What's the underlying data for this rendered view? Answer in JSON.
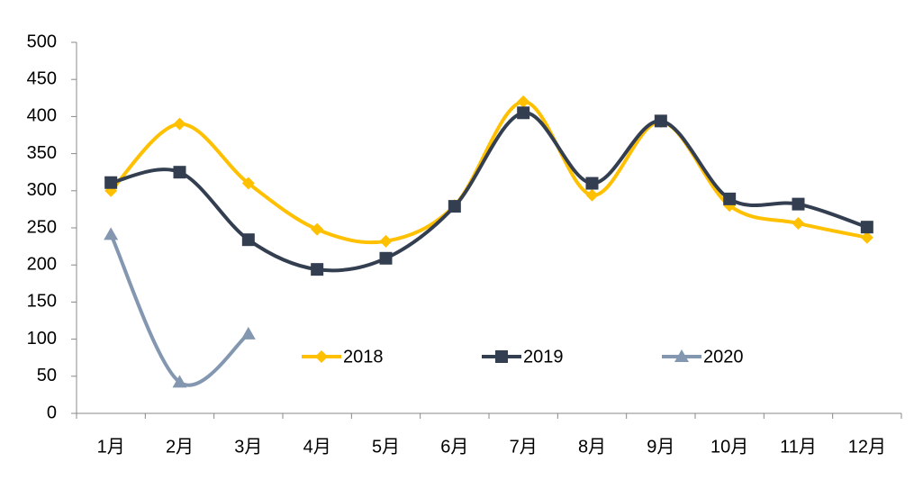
{
  "chart_data": {
    "type": "line",
    "categories": [
      "1月",
      "2月",
      "3月",
      "4月",
      "5月",
      "6月",
      "7月",
      "8月",
      "9月",
      "10月",
      "11月",
      "12月"
    ],
    "series": [
      {
        "name": "2018",
        "color": "#FFC000",
        "marker": "diamond",
        "values": [
          300,
          390,
          310,
          248,
          232,
          280,
          420,
          294,
          393,
          280,
          256,
          237
        ]
      },
      {
        "name": "2019",
        "color": "#333F50",
        "marker": "square",
        "values": [
          311,
          325,
          234,
          194,
          209,
          279,
          405,
          310,
          394,
          289,
          282,
          251
        ]
      },
      {
        "name": "2020",
        "color": "#8497B0",
        "marker": "triangle",
        "values": [
          241,
          42,
          107,
          null,
          null,
          null,
          null,
          null,
          null,
          null,
          null,
          null
        ]
      }
    ],
    "ylim": [
      0,
      500
    ],
    "yticks": [
      0,
      50,
      100,
      150,
      200,
      250,
      300,
      350,
      400,
      450,
      500
    ],
    "grid": false,
    "smooth": true,
    "legend": "inside center"
  }
}
